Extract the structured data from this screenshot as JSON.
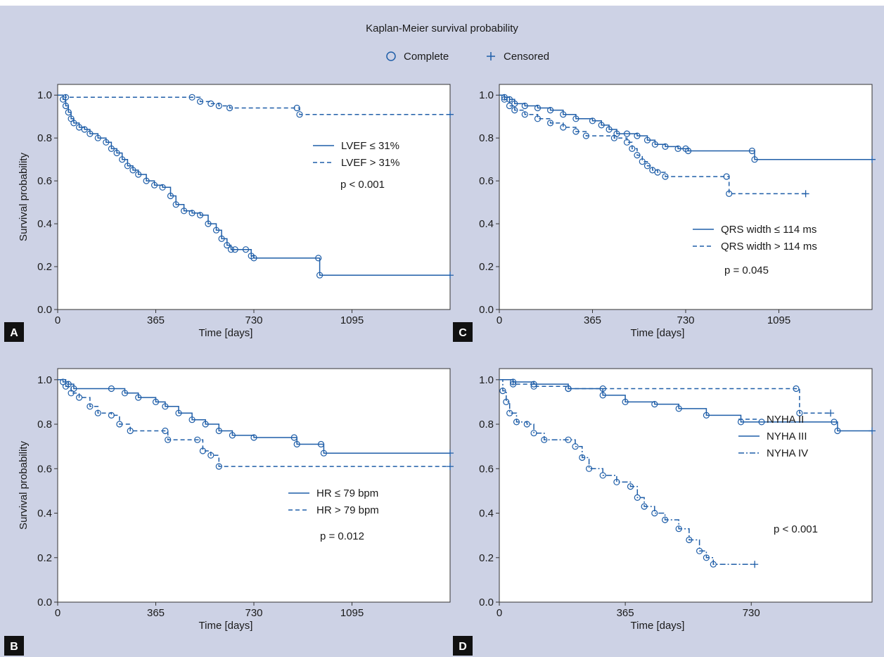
{
  "figure": {
    "title": "Kaplan-Meier survival probability",
    "legend": [
      {
        "symbol": "circle",
        "label": "Complete"
      },
      {
        "symbol": "plus",
        "label": "Censored"
      }
    ]
  },
  "colors": {
    "background": "#cdd2e5",
    "line": "#1f5ea8",
    "panel_label_bg": "#111111",
    "text": "#1a1a1a"
  },
  "chart_data": [
    {
      "panel": "A",
      "type": "line",
      "xlabel": "Time [days]",
      "ylabel": "Survival probability",
      "xticks": [
        0,
        365,
        730,
        1095
      ],
      "yticks": [
        0.0,
        0.2,
        0.4,
        0.6,
        0.8,
        1.0
      ],
      "xlim": [
        0,
        1460
      ],
      "ylim": [
        0,
        1.05
      ],
      "series": [
        {
          "name": "LVEF ≤ 31%",
          "style": "solid",
          "points": [
            [
              0,
              1.0
            ],
            [
              20,
              0.98
            ],
            [
              30,
              0.95
            ],
            [
              40,
              0.92
            ],
            [
              50,
              0.89
            ],
            [
              60,
              0.87
            ],
            [
              80,
              0.85
            ],
            [
              100,
              0.84
            ],
            [
              120,
              0.82
            ],
            [
              150,
              0.8
            ],
            [
              180,
              0.78
            ],
            [
              200,
              0.75
            ],
            [
              220,
              0.73
            ],
            [
              240,
              0.7
            ],
            [
              260,
              0.67
            ],
            [
              280,
              0.65
            ],
            [
              300,
              0.63
            ],
            [
              330,
              0.6
            ],
            [
              360,
              0.58
            ],
            [
              390,
              0.57
            ],
            [
              420,
              0.53
            ],
            [
              440,
              0.49
            ],
            [
              470,
              0.46
            ],
            [
              500,
              0.45
            ],
            [
              530,
              0.44
            ],
            [
              560,
              0.4
            ],
            [
              590,
              0.37
            ],
            [
              610,
              0.33
            ],
            [
              630,
              0.3
            ],
            [
              645,
              0.28
            ],
            [
              660,
              0.28
            ],
            [
              700,
              0.28
            ],
            [
              720,
              0.25
            ],
            [
              730,
              0.24
            ],
            [
              970,
              0.24
            ],
            [
              975,
              0.16
            ],
            [
              1460,
              0.16
            ]
          ]
        },
        {
          "name": "LVEF > 31%",
          "style": "dashed",
          "points": [
            [
              0,
              1.0
            ],
            [
              30,
              0.99
            ],
            [
              500,
              0.99
            ],
            [
              530,
              0.97
            ],
            [
              570,
              0.96
            ],
            [
              600,
              0.95
            ],
            [
              640,
              0.94
            ],
            [
              890,
              0.94
            ],
            [
              900,
              0.91
            ],
            [
              1460,
              0.91
            ]
          ]
        }
      ],
      "annotation": "p < 0.001"
    },
    {
      "panel": "C",
      "type": "line",
      "xlabel": "Time [days]",
      "ylabel": "",
      "xticks": [
        0,
        365,
        730,
        1095
      ],
      "yticks": [
        0.0,
        0.2,
        0.4,
        0.6,
        0.8,
        1.0
      ],
      "xlim": [
        0,
        1460
      ],
      "ylim": [
        0,
        1.05
      ],
      "series": [
        {
          "name": "QRS width ≤ 114 ms",
          "style": "solid",
          "points": [
            [
              0,
              1.0
            ],
            [
              20,
              0.99
            ],
            [
              40,
              0.98
            ],
            [
              60,
              0.96
            ],
            [
              100,
              0.95
            ],
            [
              150,
              0.94
            ],
            [
              200,
              0.93
            ],
            [
              250,
              0.91
            ],
            [
              300,
              0.89
            ],
            [
              365,
              0.88
            ],
            [
              400,
              0.86
            ],
            [
              430,
              0.84
            ],
            [
              460,
              0.82
            ],
            [
              500,
              0.82
            ],
            [
              540,
              0.81
            ],
            [
              580,
              0.79
            ],
            [
              610,
              0.77
            ],
            [
              650,
              0.76
            ],
            [
              700,
              0.75
            ],
            [
              730,
              0.75
            ],
            [
              740,
              0.74
            ],
            [
              990,
              0.74
            ],
            [
              1000,
              0.7
            ],
            [
              1460,
              0.7
            ]
          ]
        },
        {
          "name": "QRS width > 114 ms",
          "style": "dashed",
          "points": [
            [
              0,
              1.0
            ],
            [
              20,
              0.98
            ],
            [
              40,
              0.95
            ],
            [
              60,
              0.93
            ],
            [
              100,
              0.91
            ],
            [
              150,
              0.89
            ],
            [
              200,
              0.87
            ],
            [
              250,
              0.85
            ],
            [
              300,
              0.83
            ],
            [
              340,
              0.81
            ],
            [
              450,
              0.8
            ],
            [
              500,
              0.78
            ],
            [
              520,
              0.75
            ],
            [
              540,
              0.72
            ],
            [
              560,
              0.69
            ],
            [
              580,
              0.67
            ],
            [
              600,
              0.65
            ],
            [
              620,
              0.64
            ],
            [
              650,
              0.62
            ],
            [
              890,
              0.62
            ],
            [
              900,
              0.54
            ],
            [
              1200,
              0.54
            ]
          ]
        }
      ],
      "annotation": "p = 0.045"
    },
    {
      "panel": "B",
      "type": "line",
      "xlabel": "Time [days]",
      "ylabel": "Survival probability",
      "xticks": [
        0,
        365,
        730,
        1095
      ],
      "yticks": [
        0.0,
        0.2,
        0.4,
        0.6,
        0.8,
        1.0
      ],
      "xlim": [
        0,
        1460
      ],
      "ylim": [
        0,
        1.05
      ],
      "series": [
        {
          "name": "HR ≤ 79 bpm",
          "style": "solid",
          "points": [
            [
              0,
              1.0
            ],
            [
              20,
              0.99
            ],
            [
              40,
              0.98
            ],
            [
              60,
              0.96
            ],
            [
              200,
              0.96
            ],
            [
              250,
              0.94
            ],
            [
              300,
              0.92
            ],
            [
              365,
              0.9
            ],
            [
              400,
              0.88
            ],
            [
              450,
              0.85
            ],
            [
              500,
              0.82
            ],
            [
              550,
              0.8
            ],
            [
              600,
              0.77
            ],
            [
              650,
              0.75
            ],
            [
              730,
              0.74
            ],
            [
              880,
              0.74
            ],
            [
              890,
              0.71
            ],
            [
              980,
              0.71
            ],
            [
              990,
              0.67
            ],
            [
              1460,
              0.67
            ]
          ]
        },
        {
          "name": "HR > 79 bpm",
          "style": "dashed",
          "points": [
            [
              0,
              1.0
            ],
            [
              30,
              0.97
            ],
            [
              50,
              0.94
            ],
            [
              80,
              0.92
            ],
            [
              120,
              0.88
            ],
            [
              150,
              0.85
            ],
            [
              200,
              0.84
            ],
            [
              230,
              0.8
            ],
            [
              270,
              0.77
            ],
            [
              400,
              0.77
            ],
            [
              410,
              0.73
            ],
            [
              520,
              0.73
            ],
            [
              540,
              0.68
            ],
            [
              570,
              0.66
            ],
            [
              600,
              0.61
            ],
            [
              1460,
              0.61
            ]
          ]
        }
      ],
      "annotation": "p = 0.012"
    },
    {
      "panel": "D",
      "type": "line",
      "xlabel": "Time [days]",
      "ylabel": "",
      "xticks": [
        0,
        365,
        730
      ],
      "yticks": [
        0.0,
        0.2,
        0.4,
        0.6,
        0.8,
        1.0
      ],
      "xlim": [
        0,
        1080
      ],
      "ylim": [
        0,
        1.05
      ],
      "series": [
        {
          "name": "NYHA II",
          "style": "dashed",
          "points": [
            [
              0,
              1.0
            ],
            [
              40,
              0.98
            ],
            [
              100,
              0.97
            ],
            [
              200,
              0.96
            ],
            [
              300,
              0.96
            ],
            [
              860,
              0.96
            ],
            [
              870,
              0.85
            ],
            [
              960,
              0.85
            ]
          ]
        },
        {
          "name": "NYHA III",
          "style": "solid",
          "points": [
            [
              0,
              1.0
            ],
            [
              40,
              0.99
            ],
            [
              100,
              0.98
            ],
            [
              200,
              0.96
            ],
            [
              300,
              0.93
            ],
            [
              365,
              0.9
            ],
            [
              450,
              0.89
            ],
            [
              520,
              0.87
            ],
            [
              600,
              0.84
            ],
            [
              700,
              0.81
            ],
            [
              760,
              0.81
            ],
            [
              970,
              0.81
            ],
            [
              980,
              0.77
            ],
            [
              1080,
              0.77
            ]
          ]
        },
        {
          "name": "NYHA IV",
          "style": "dashdot",
          "points": [
            [
              0,
              1.0
            ],
            [
              10,
              0.95
            ],
            [
              20,
              0.9
            ],
            [
              30,
              0.85
            ],
            [
              50,
              0.81
            ],
            [
              80,
              0.8
            ],
            [
              100,
              0.76
            ],
            [
              130,
              0.73
            ],
            [
              200,
              0.73
            ],
            [
              220,
              0.7
            ],
            [
              240,
              0.65
            ],
            [
              260,
              0.6
            ],
            [
              300,
              0.57
            ],
            [
              340,
              0.54
            ],
            [
              380,
              0.52
            ],
            [
              400,
              0.47
            ],
            [
              420,
              0.43
            ],
            [
              450,
              0.4
            ],
            [
              480,
              0.37
            ],
            [
              520,
              0.33
            ],
            [
              550,
              0.28
            ],
            [
              580,
              0.23
            ],
            [
              600,
              0.2
            ],
            [
              620,
              0.17
            ],
            [
              740,
              0.17
            ]
          ]
        }
      ],
      "annotation": "p < 0.001"
    }
  ]
}
